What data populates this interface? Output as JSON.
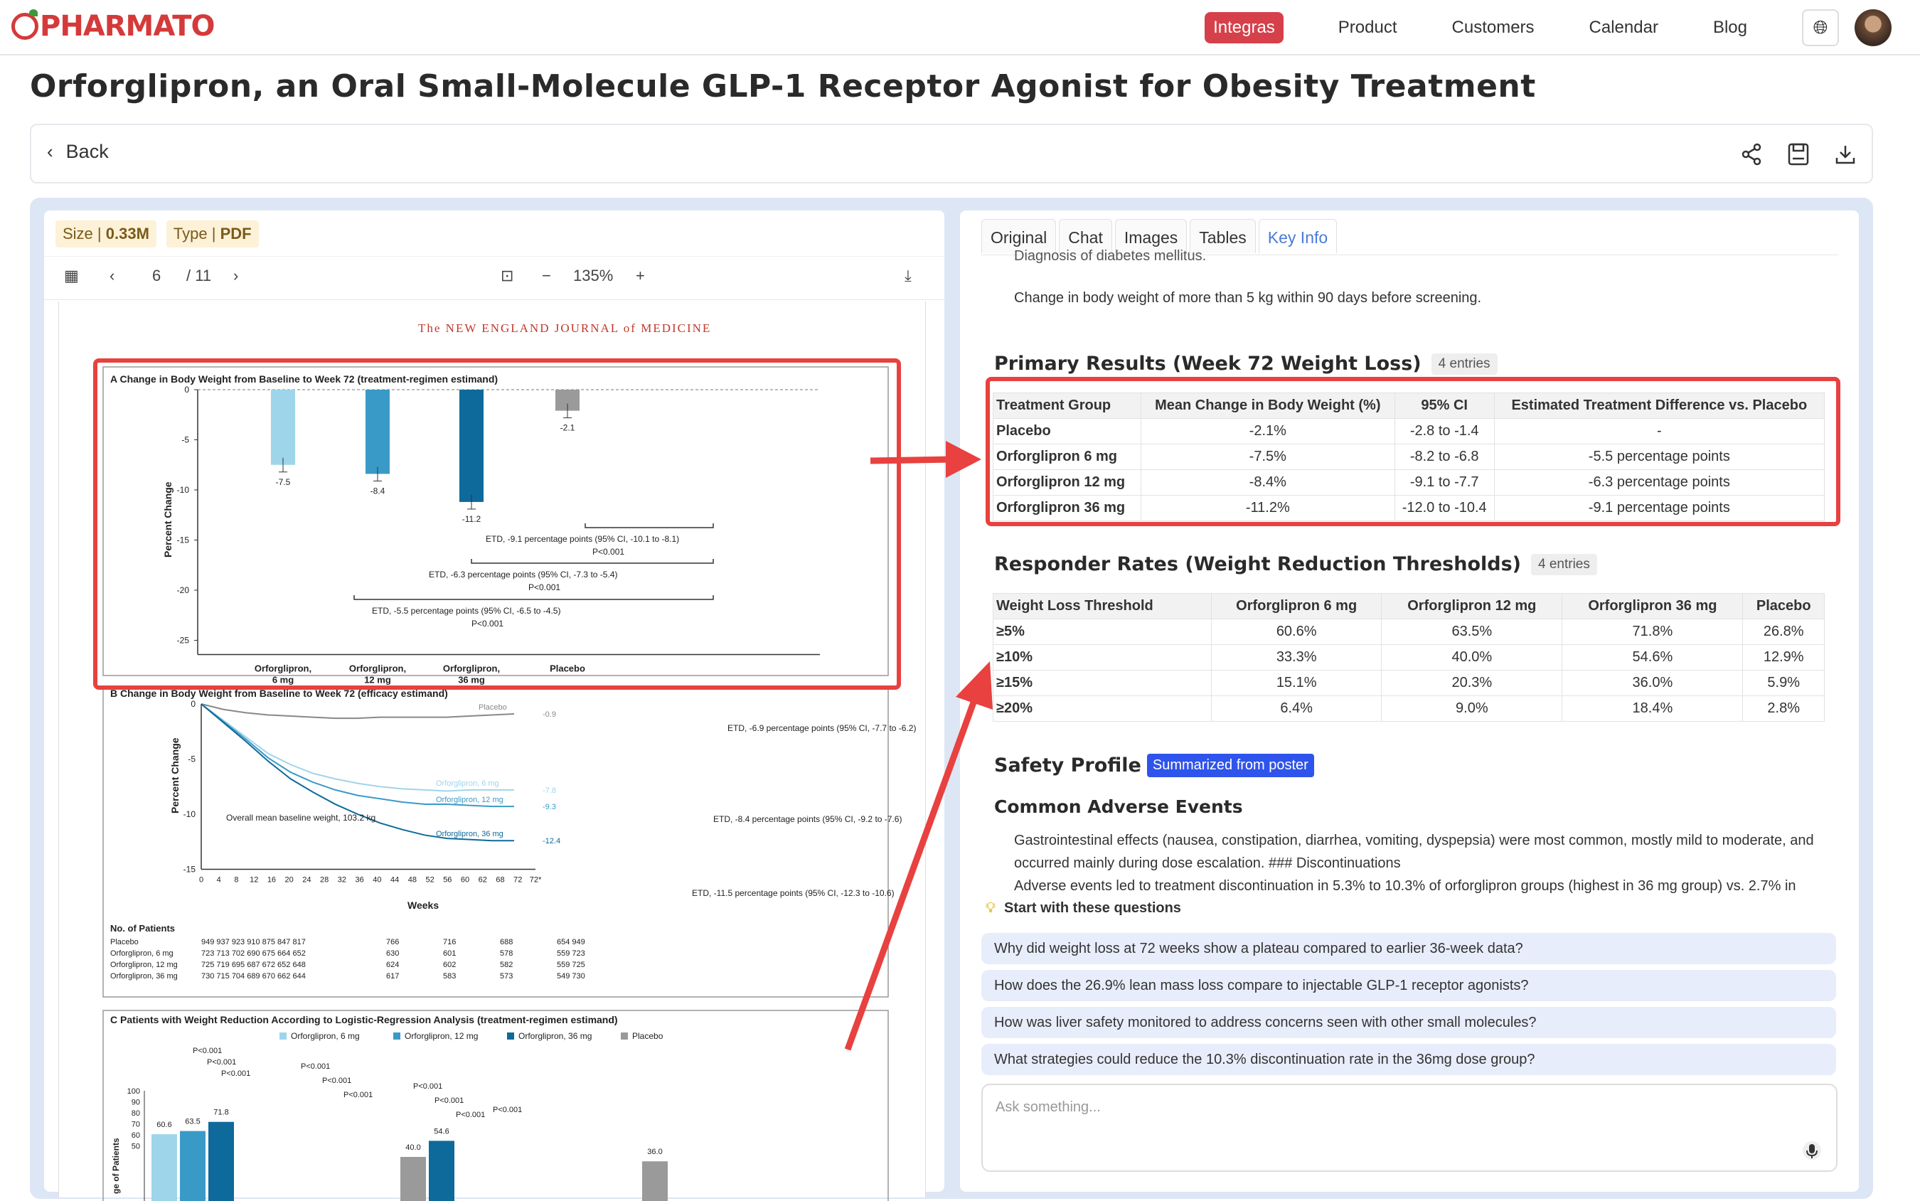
{
  "nav": {
    "logo": "PHARMATO",
    "links": [
      "Integras",
      "Product",
      "Customers",
      "Calendar",
      "Blog"
    ],
    "active": "Integras"
  },
  "page_title": "Orforglipron, an Oral Small-Molecule GLP-1 Receptor Agonist for Obesity Treatment",
  "backbar": {
    "back_label": "Back"
  },
  "file": {
    "size_label": "Size |",
    "size": "0.33M",
    "type_label": "Type |",
    "type": "PDF"
  },
  "pdf": {
    "page": "6",
    "total": "/ 11",
    "zoom": "135%",
    "journal": "The NEW ENGLAND JOURNAL of MEDICINE",
    "figA": {
      "title": "A   Change in Body Weight from Baseline to Week 72 (treatment-regimen estimand)",
      "ylabel": "Percent Change",
      "yticks": [
        "0",
        "-5",
        "-10",
        "-15",
        "-20",
        "-25"
      ],
      "bars": [
        {
          "label": "Orforglipron, 6 mg",
          "value": -7.5,
          "text": "-7.5",
          "color": "#9fd5ea"
        },
        {
          "label": "Orforglipron, 12 mg",
          "value": -8.4,
          "text": "-8.4",
          "color": "#3a9ac7"
        },
        {
          "label": "Orforglipron, 36 mg",
          "value": -11.2,
          "text": "-11.2",
          "color": "#0e6a9a"
        },
        {
          "label": "Placebo",
          "value": -2.1,
          "text": "-2.1",
          "color": "#9a9a9a"
        }
      ],
      "etd": [
        "ETD, -9.1 percentage points (95% CI, -10.1 to -8.1)",
        "P<0.001",
        "ETD, -6.3 percentage points (95% CI, -7.3 to -5.4)",
        "P<0.001",
        "ETD, -5.5 percentage points (95% CI, -6.5 to -4.5)",
        "P<0.001"
      ]
    },
    "figB": {
      "title": "B   Change in Body Weight from Baseline to Week 72 (efficacy estimand)",
      "ylabel": "Percent Change",
      "xlabel": "Weeks",
      "yticks": [
        "0",
        "-5",
        "-10",
        "-15"
      ],
      "xticks": [
        "0",
        "4",
        "8",
        "12",
        "16",
        "20",
        "24",
        "28",
        "32",
        "36",
        "40",
        "44",
        "48",
        "52",
        "56",
        "60",
        "62",
        "68",
        "72",
        "72*"
      ],
      "series": [
        {
          "name": "Placebo",
          "end": "-0.9"
        },
        {
          "name": "Orforglipron, 6 mg",
          "end": "-7.8"
        },
        {
          "name": "Orforglipron, 12 mg",
          "end": "-9.3"
        },
        {
          "name": "Orforglipron, 36 mg",
          "end": "-12.4"
        }
      ],
      "note": "Overall mean baseline weight, 103.2 kg",
      "etd": [
        "ETD, -6.9 percentage points (95% CI, -7.7 to -6.2)",
        "ETD, -8.4 percentage points (95% CI, -9.2 to -7.6)",
        "ETD, -11.5 percentage points (95% CI, -12.3 to -10.6)"
      ],
      "patients_title": "No. of Patients",
      "patients": [
        [
          "Placebo",
          "949 937 923 910 875 847 817",
          "766",
          "716",
          "688",
          "654 949"
        ],
        [
          "Orforglipron, 6 mg",
          "723 713 702 690 675 664 652",
          "630",
          "601",
          "578",
          "559 723"
        ],
        [
          "Orforglipron, 12 mg",
          "725 719 695 687 672 652 648",
          "624",
          "602",
          "582",
          "559 725"
        ],
        [
          "Orforglipron, 36 mg",
          "730 715 704 689 670 662 644",
          "617",
          "583",
          "573",
          "549 730"
        ]
      ]
    },
    "figC": {
      "title": "C   Patients with Weight Reduction According to Logistic-Regression Analysis (treatment-regimen estimand)",
      "legend": [
        "Orforglipron, 6 mg",
        "Orforglipron, 12 mg",
        "Orforglipron, 36 mg",
        "Placebo"
      ],
      "ylabel": "ge of Patients",
      "yticks": [
        "100",
        "90",
        "80",
        "70",
        "60",
        "50"
      ],
      "values": [
        "60.6",
        "63.5",
        "71.8",
        "40.0",
        "54.6",
        "36.0"
      ],
      "p": "P<0.001"
    }
  },
  "tabs": [
    "Original",
    "Chat",
    "Images",
    "Tables",
    "Key Info"
  ],
  "active_tab": "Key Info",
  "exclusion": {
    "cut": "Diagnosis of diabetes mellitus.",
    "line": "Change in body weight of more than 5 kg within 90 days before screening."
  },
  "primary": {
    "title": "Primary Results (Week 72 Weight Loss)",
    "count": "4 entries",
    "headers": [
      "Treatment Group",
      "Mean Change in Body Weight (%)",
      "95% CI",
      "Estimated Treatment Difference vs. Placebo"
    ],
    "rows": [
      [
        "Placebo",
        "-2.1%",
        "-2.8 to -1.4",
        "-"
      ],
      [
        "Orforglipron 6 mg",
        "-7.5%",
        "-8.2 to -6.8",
        "-5.5 percentage points"
      ],
      [
        "Orforglipron 12 mg",
        "-8.4%",
        "-9.1 to -7.7",
        "-6.3 percentage points"
      ],
      [
        "Orforglipron 36 mg",
        "-11.2%",
        "-12.0 to -10.4",
        "-9.1 percentage points"
      ]
    ]
  },
  "responder": {
    "title": "Responder Rates (Weight Reduction Thresholds)",
    "count": "4 entries",
    "headers": [
      "Weight Loss Threshold",
      "Orforglipron 6 mg",
      "Orforglipron 12 mg",
      "Orforglipron 36 mg",
      "Placebo"
    ],
    "rows": [
      [
        "≥5%",
        "60.6%",
        "63.5%",
        "71.8%",
        "26.8%"
      ],
      [
        "≥10%",
        "33.3%",
        "40.0%",
        "54.6%",
        "12.9%"
      ],
      [
        "≥15%",
        "15.1%",
        "20.3%",
        "36.0%",
        "5.9%"
      ],
      [
        "≥20%",
        "6.4%",
        "9.0%",
        "18.4%",
        "2.8%"
      ]
    ]
  },
  "safety": {
    "title": "Safety Profile",
    "pill": "Summarized from poster",
    "sub": "Common Adverse Events",
    "p1": "Gastrointestinal effects (nausea, constipation, diarrhea, vomiting, dyspepsia) were most common, mostly mild to moderate, and occurred mainly during dose escalation. ### Discontinuations",
    "p2": "Adverse events led to treatment discontinuation in 5.3% to 10.3% of orforglipron groups (highest in 36 mg group) vs. 2.7% in"
  },
  "questions": {
    "title": "Start with these questions",
    "items": [
      "Why did weight loss at 72 weeks show a plateau compared to earlier 36-week data?",
      "How does the 26.9% lean mass loss compare to injectable GLP-1 receptor agonists?",
      "How was liver safety monitored to address concerns seen with other small molecules?",
      "What strategies could reduce the 10.3% discontinuation rate in the 36mg dose group?"
    ]
  },
  "chat": {
    "placeholder": "Ask something..."
  }
}
